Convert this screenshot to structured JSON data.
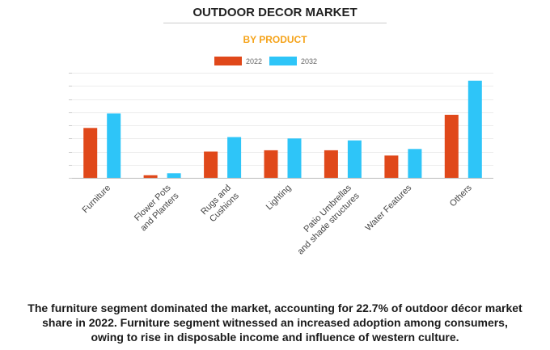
{
  "chart_data": {
    "type": "bar",
    "title": "OUTDOOR DECOR MARKET",
    "subtitle": "BY PRODUCT",
    "categories": [
      [
        "Furniture"
      ],
      [
        "Flower Pots",
        "and Planters"
      ],
      [
        "Rugs and",
        "Cushions"
      ],
      [
        "Lighting"
      ],
      [
        "Patio Umbrellas",
        "and shade structures"
      ],
      [
        "Water Features"
      ],
      [
        "Others"
      ]
    ],
    "series": [
      {
        "name": "2022",
        "color": "#e0481a",
        "values": [
          3.8,
          0.2,
          2.0,
          2.1,
          2.1,
          1.7,
          4.8
        ]
      },
      {
        "name": "2032",
        "color": "#2ec5f8",
        "values": [
          4.9,
          0.35,
          3.1,
          3.0,
          2.85,
          2.2,
          7.4
        ]
      }
    ],
    "ylim": [
      0,
      8
    ],
    "grid": true,
    "legend_position": "top-center",
    "xlabel": "",
    "ylabel": ""
  },
  "caption": {
    "lines": [
      "The furniture segment dominated the market, accounting for 22.7% of outdoor décor market",
      "share in 2022. Furniture segment witnessed an increased adoption among consumers,",
      "owing to rise in disposable income and influence of western culture."
    ]
  }
}
